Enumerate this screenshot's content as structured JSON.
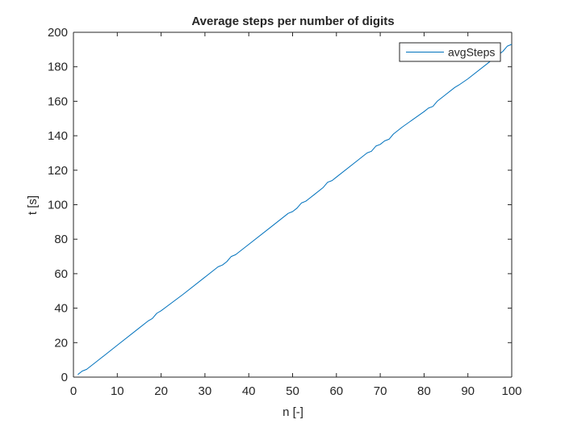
{
  "chart_data": {
    "type": "line",
    "title": "Average steps per number of digits",
    "xlabel": "n [-]",
    "ylabel": "t [s]",
    "xlim": [
      0,
      100
    ],
    "ylim": [
      0,
      200
    ],
    "xticks": [
      0,
      10,
      20,
      30,
      40,
      50,
      60,
      70,
      80,
      90,
      100
    ],
    "yticks": [
      0,
      20,
      40,
      60,
      80,
      100,
      120,
      140,
      160,
      180,
      200
    ],
    "grid": false,
    "legend_position": "top-right",
    "series": [
      {
        "name": "avgSteps",
        "color": "#0072BD",
        "x": [
          1,
          2,
          3,
          5,
          10,
          15,
          17,
          18,
          19,
          20,
          25,
          30,
          32,
          33,
          34,
          35,
          36,
          37,
          40,
          45,
          49,
          50,
          51,
          52,
          53,
          55,
          57,
          58,
          59,
          60,
          65,
          67,
          68,
          69,
          70,
          71,
          72,
          73,
          75,
          80,
          81,
          82,
          83,
          85,
          87,
          88,
          90,
          95,
          97,
          98,
          99,
          100
        ],
        "y": [
          1.5,
          3.5,
          4.5,
          8.5,
          18.5,
          28.5,
          32.5,
          34,
          37,
          38.5,
          48,
          58,
          62,
          64,
          65,
          67,
          70,
          71,
          77,
          87,
          95,
          96,
          98,
          101,
          102,
          106,
          110,
          113,
          114,
          116,
          126,
          130,
          131,
          134,
          135,
          137,
          138,
          141,
          145,
          154,
          156,
          157,
          160,
          164,
          168,
          169.5,
          173,
          183,
          187,
          189,
          192,
          193
        ]
      }
    ]
  }
}
